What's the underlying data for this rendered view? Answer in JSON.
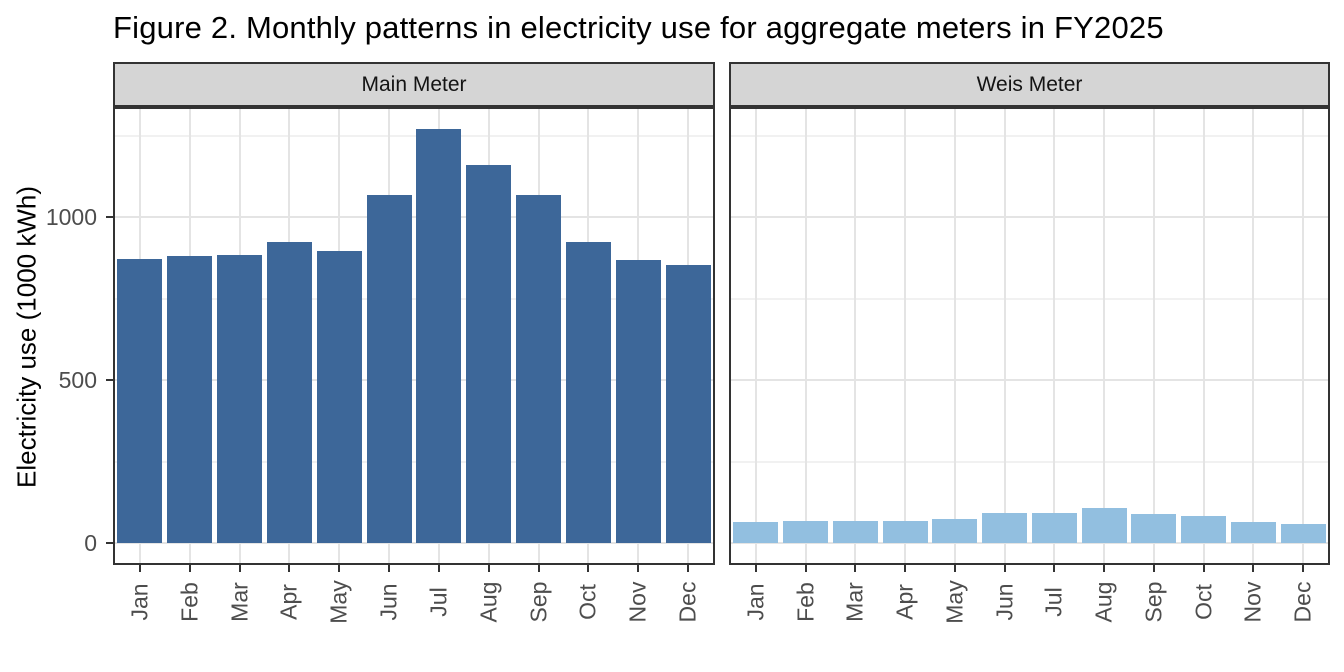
{
  "title": "Figure 2. Monthly patterns in electricity use for aggregate meters in FY2025",
  "chart_data": {
    "type": "bar",
    "title": "Figure 2. Monthly patterns in electricity use for aggregate meters in FY2025",
    "facets": [
      "Main Meter",
      "Weis Meter"
    ],
    "categories": [
      "Jan",
      "Feb",
      "Mar",
      "Apr",
      "May",
      "Jun",
      "Jul",
      "Aug",
      "Sep",
      "Oct",
      "Nov",
      "Dec"
    ],
    "series": [
      {
        "name": "Main Meter",
        "color": "#3d6799",
        "values": [
          872,
          879,
          882,
          922,
          896,
          1068,
          1270,
          1160,
          1068,
          924,
          868,
          853
        ]
      },
      {
        "name": "Weis Meter",
        "color": "#92bfe0",
        "values": [
          65,
          68,
          68,
          67,
          73,
          92,
          92,
          106,
          89,
          84,
          65,
          58
        ]
      }
    ],
    "xlabel": "",
    "ylabel": "Electricity use (1000 kWh)",
    "ylim": [
      0,
      1330
    ],
    "yticks": [
      0,
      500,
      1000
    ],
    "ytick_labels": [
      "0",
      "500",
      "1000"
    ],
    "minor_yticks": [
      250,
      750,
      1250
    ],
    "grid": "major and minor horizontal, major vertical at category centers",
    "legend_position": "none"
  },
  "colors": {
    "bar_main": "#3d6799",
    "bar_weis": "#92bfe0",
    "strip_background": "#d5d5d5",
    "panel_border": "#333333",
    "axis_text": "#4d4d4d",
    "grid_major": "#e4e4e4",
    "grid_minor": "#f1f1f1"
  }
}
